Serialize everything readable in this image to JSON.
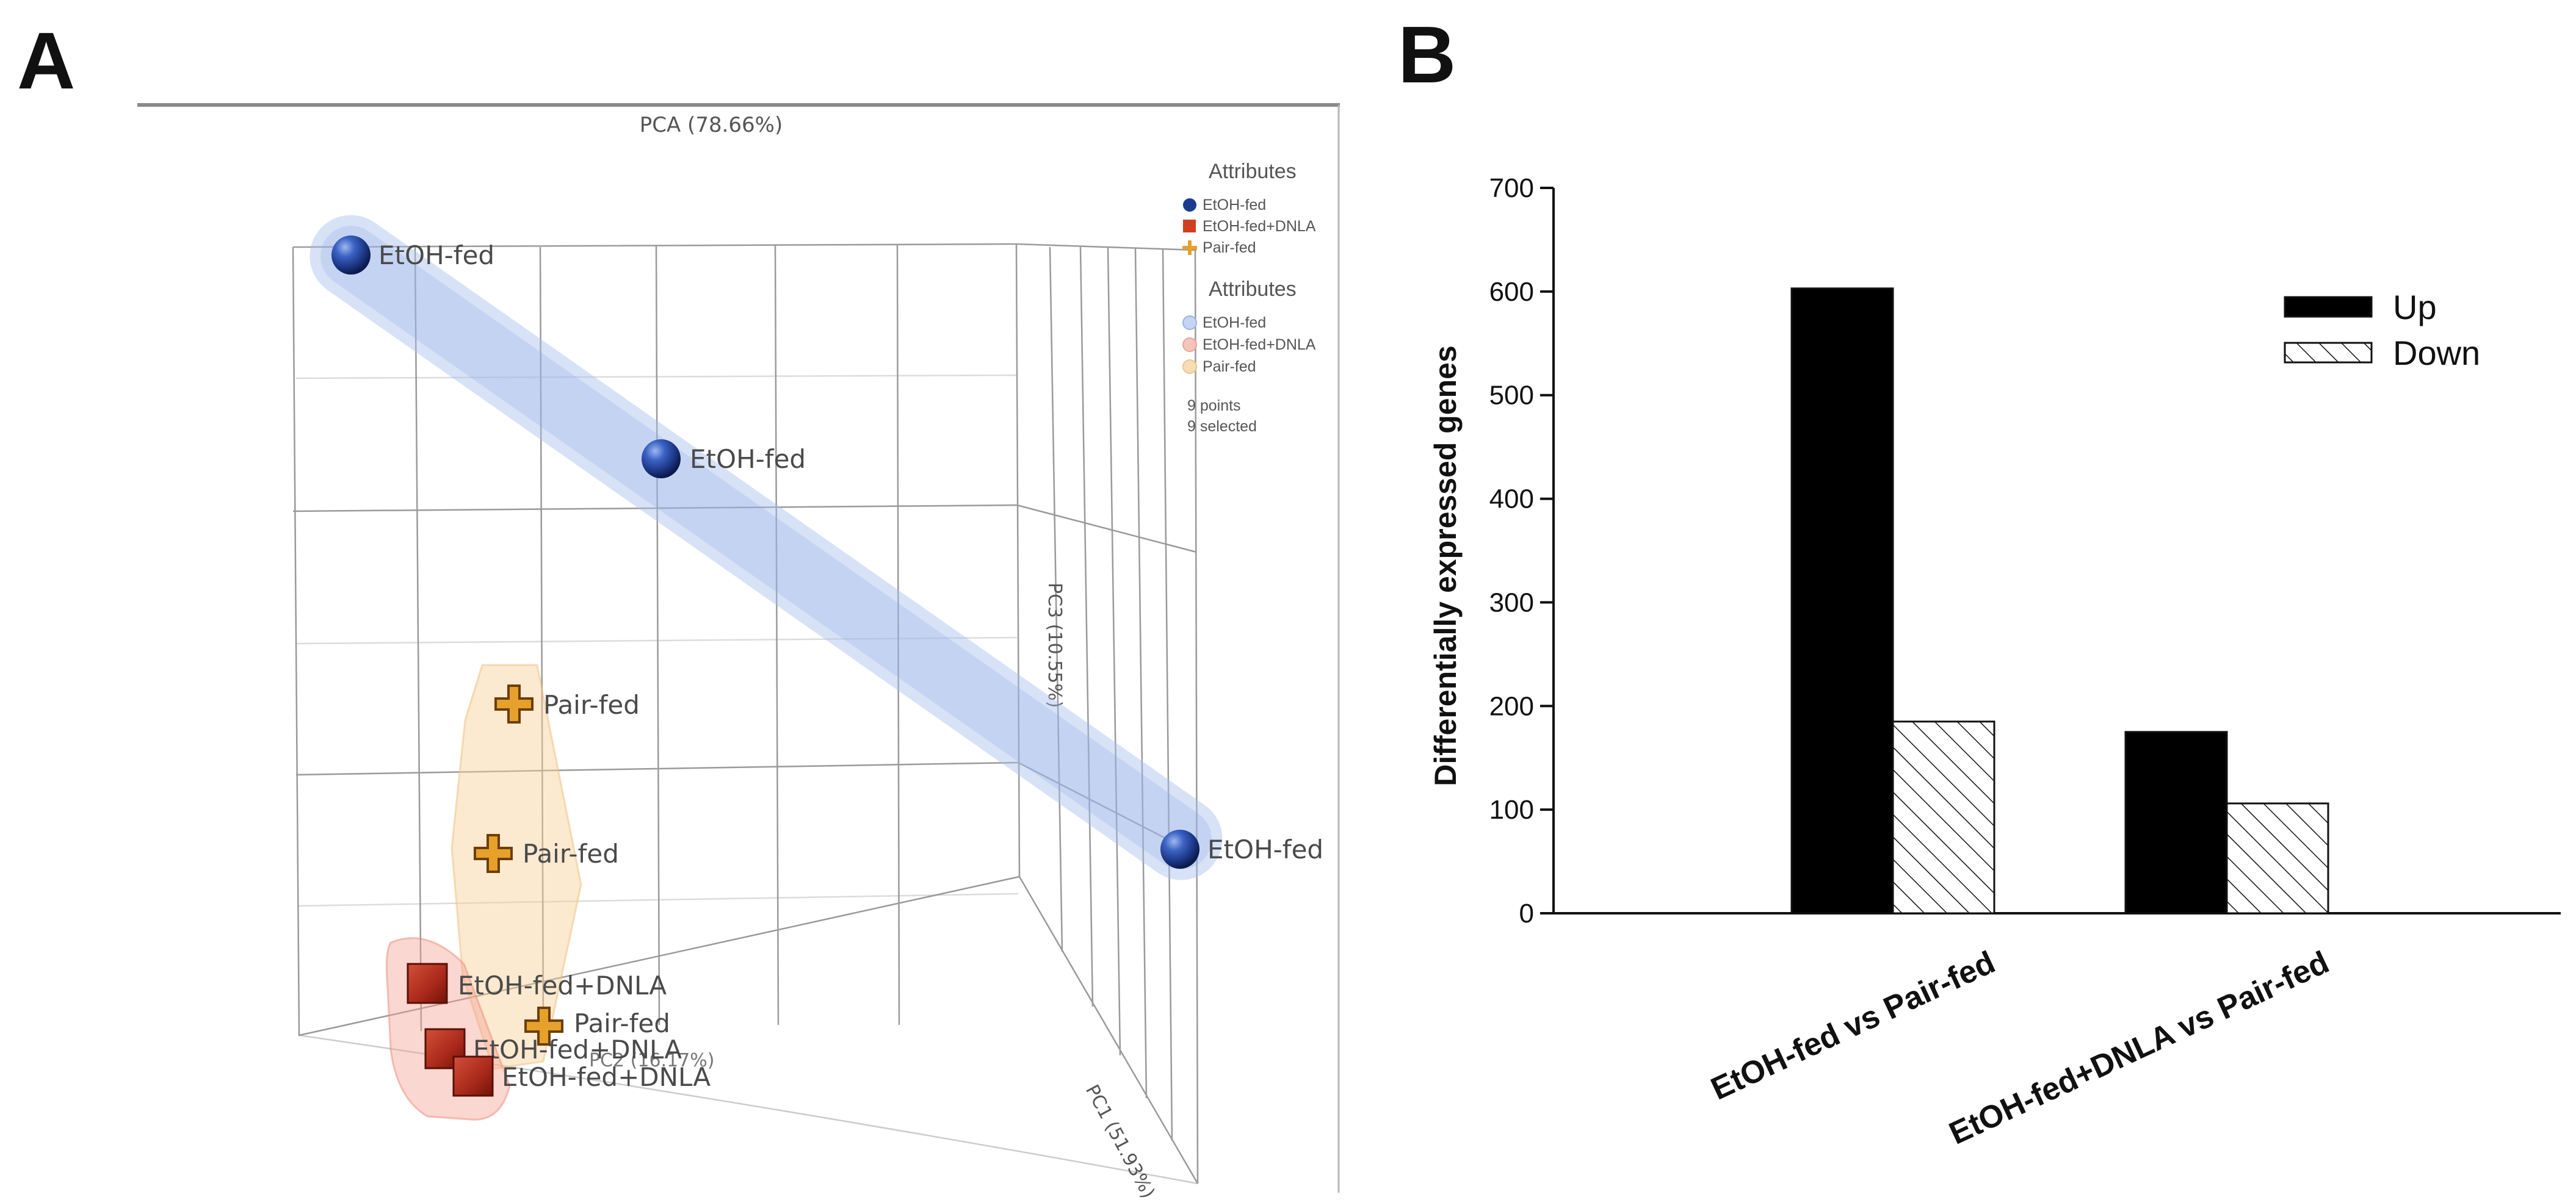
{
  "panel_a": {
    "letter": "A",
    "plot_title": "PCA (78.66%)",
    "axis_pc1": "PC1 (51.93%)",
    "axis_pc2": "PC2 (16.17%)",
    "axis_pc3": "PC3 (10.55%)",
    "legend": {
      "heading_points": "Attributes",
      "heading_ellipses": "Attributes",
      "items": [
        "EtOH-fed",
        "EtOH-fed+DNLA",
        "Pair-fed"
      ],
      "count_points": "9 points",
      "count_selected": "9 selected"
    },
    "colors": {
      "etoh": "#1c3d8f",
      "etoh_dnla": "#a8281a",
      "pair": "#e0921c"
    },
    "point_labels": {
      "etoh_1": "EtOH-fed",
      "etoh_2": "EtOH-fed",
      "etoh_3": "EtOH-fed",
      "pair_1": "Pair-fed",
      "pair_2": "Pair-fed",
      "pair_3": "Pair-fed",
      "dnla_1": "EtOH-fed+DNLA",
      "dnla_2": "EtOH-fed+DNLA",
      "dnla_3": "EtOH-fed+DNLA"
    }
  },
  "panel_b": {
    "letter": "B"
  },
  "chart_data": {
    "type": "bar",
    "title": "",
    "xlabel": "",
    "ylabel": "Differentially expressed genes",
    "categories": [
      "EtOH-fed vs Pair-fed",
      "EtOH-fed+DNLA vs Pair-fed"
    ],
    "series": [
      {
        "name": "Up",
        "values": [
          603,
          175
        ],
        "fill": "solid-black"
      },
      {
        "name": "Down",
        "values": [
          185,
          106
        ],
        "fill": "hatched"
      }
    ],
    "ylim": [
      0,
      700
    ],
    "yticks": [
      0,
      100,
      200,
      300,
      400,
      500,
      600,
      700
    ],
    "legend_position": "top-right",
    "grid": false
  }
}
